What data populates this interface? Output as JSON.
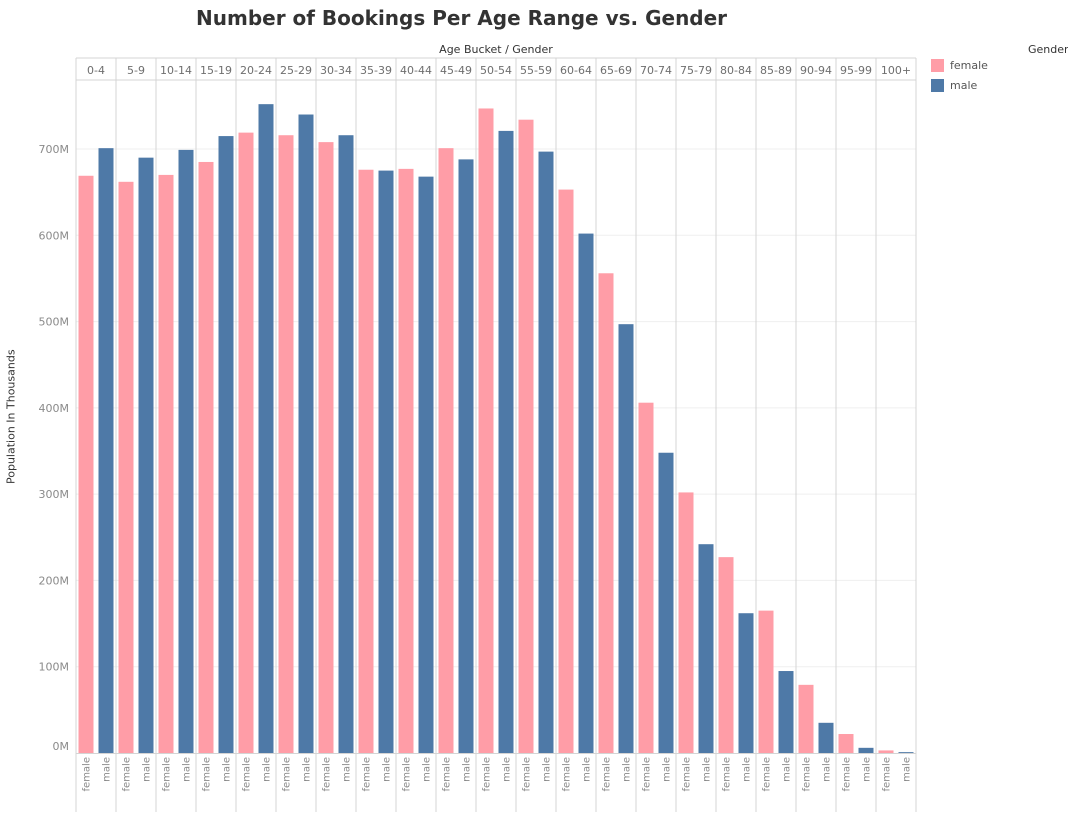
{
  "chart_data": {
    "type": "bar",
    "title": "Number of Bookings Per Age Range vs. Gender",
    "column_header": "Age Bucket  /  Gender",
    "ylabel": "Population In Thousands",
    "ylim": [
      0,
      780
    ],
    "yticks": [
      0,
      100,
      200,
      300,
      400,
      500,
      600,
      700
    ],
    "ytick_labels": [
      "0M",
      "100M",
      "200M",
      "300M",
      "400M",
      "500M",
      "600M",
      "700M"
    ],
    "categories": [
      "0-4",
      "5-9",
      "10-14",
      "15-19",
      "20-24",
      "25-29",
      "30-34",
      "35-39",
      "40-44",
      "45-49",
      "50-54",
      "55-59",
      "60-64",
      "65-69",
      "70-74",
      "75-79",
      "80-84",
      "85-89",
      "90-94",
      "95-99",
      "100+"
    ],
    "series": [
      {
        "name": "female",
        "color": "#ff9da7",
        "values": [
          669,
          662,
          670,
          685,
          719,
          716,
          708,
          676,
          677,
          701,
          747,
          734,
          653,
          556,
          406,
          302,
          227,
          165,
          79,
          22,
          3
        ]
      },
      {
        "name": "male",
        "color": "#4e79a7",
        "values": [
          701,
          690,
          699,
          715,
          752,
          740,
          716,
          675,
          668,
          688,
          721,
          697,
          602,
          497,
          348,
          242,
          162,
          95,
          35,
          6,
          1
        ]
      }
    ],
    "grid": true,
    "legend": {
      "title": "Gender",
      "position": "right",
      "items": [
        "female",
        "male"
      ]
    }
  }
}
